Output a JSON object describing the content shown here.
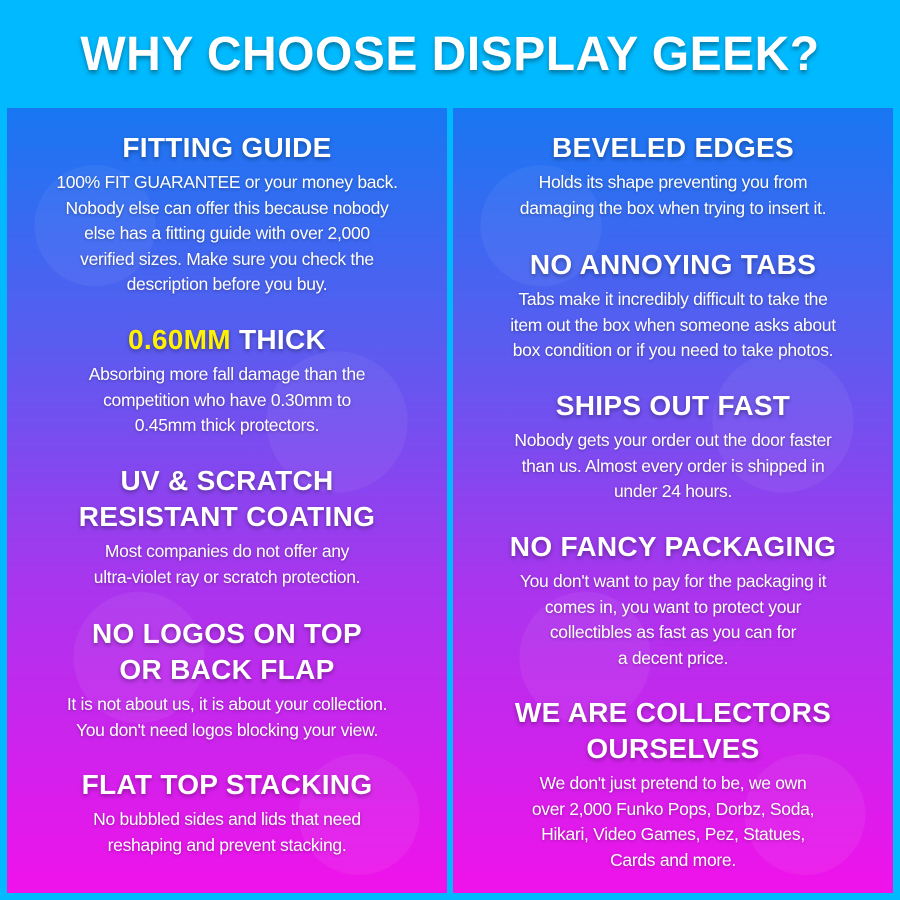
{
  "title": "WHY CHOOSE DISPLAY GEEK?",
  "colors": {
    "background": "#00b9fe",
    "gradient_top": "#1877f2",
    "gradient_bottom": "#f012ea",
    "highlight": "#fff200"
  },
  "left": [
    {
      "heading": "FITTING GUIDE",
      "body": [
        "100% FIT GUARANTEE or your money back.",
        "Nobody else can offer this because nobody",
        "else has a fitting guide with over 2,000",
        "verified sizes. Make sure you check the",
        "description before you buy."
      ]
    },
    {
      "heading_highlight": "0.60MM",
      "heading": "THICK",
      "body": [
        "Absorbing more fall damage than the",
        "competition who have 0.30mm to",
        "0.45mm thick protectors."
      ]
    },
    {
      "heading_lines": [
        "UV & SCRATCH",
        "RESISTANT COATING"
      ],
      "body": [
        "Most companies do not offer any",
        "ultra-violet ray or scratch protection."
      ]
    },
    {
      "heading_lines": [
        "NO LOGOS ON TOP",
        "OR BACK FLAP"
      ],
      "body": [
        "It is not about us, it is about your collection.",
        "You don't need logos blocking your view."
      ]
    },
    {
      "heading": "FLAT TOP STACKING",
      "body": [
        "No bubbled sides and lids that need",
        "reshaping and prevent stacking."
      ]
    }
  ],
  "right": [
    {
      "heading": "BEVELED EDGES",
      "body": [
        "Holds its shape preventing you from",
        "damaging the box when trying to insert it."
      ]
    },
    {
      "heading": "NO ANNOYING TABS",
      "body": [
        "Tabs make it incredibly difficult to take the",
        "item out the box when someone asks about",
        "box condition or if you need to take photos."
      ]
    },
    {
      "heading": "SHIPS OUT FAST",
      "body": [
        "Nobody gets your order out the door faster",
        "than us. Almost every order is shipped in",
        "under 24 hours."
      ]
    },
    {
      "heading": "NO FANCY PACKAGING",
      "body": [
        "You don't want to pay for the packaging it",
        "comes in, you want to protect your",
        "collectibles as fast as you can for",
        "a decent price."
      ]
    },
    {
      "heading_lines": [
        "WE ARE COLLECTORS",
        "OURSELVES"
      ],
      "body": [
        "We don't just pretend to be, we own",
        "over 2,000 Funko Pops, Dorbz, Soda,",
        "Hikari, Video Games, Pez, Statues,",
        "Cards and more."
      ]
    }
  ]
}
